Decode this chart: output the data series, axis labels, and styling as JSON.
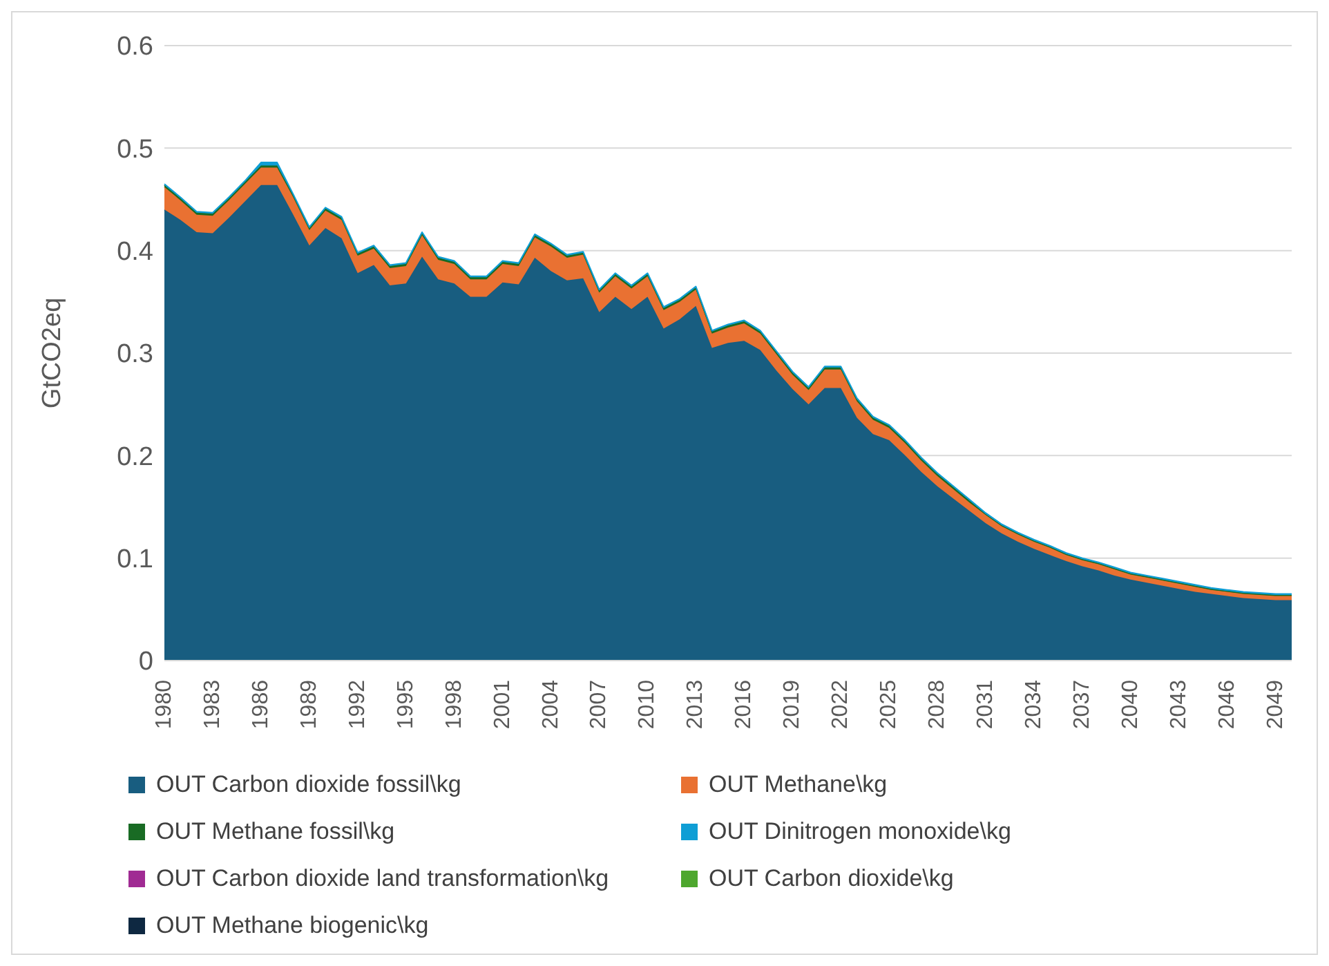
{
  "chart_data": {
    "type": "area",
    "stacked": true,
    "ylabel": "GtCO2eq",
    "categories": [
      "1980",
      null,
      null,
      "1983",
      null,
      null,
      "1986",
      null,
      null,
      "1989",
      null,
      null,
      "1992",
      null,
      null,
      "1995",
      null,
      null,
      "1998",
      null,
      null,
      "2001",
      null,
      null,
      "2004",
      null,
      null,
      "2007",
      null,
      null,
      "2010",
      null,
      null,
      "2013",
      null,
      null,
      "2016",
      null,
      null,
      "2019",
      null,
      null,
      "2022",
      null,
      null,
      "2025",
      null,
      null,
      "2028",
      null,
      null,
      "2031",
      null,
      null,
      "2034",
      null,
      null,
      "2037",
      null,
      null,
      "2040",
      null,
      null,
      "2043",
      null,
      null,
      "2046",
      null,
      null,
      "2049",
      null
    ],
    "ylim": [
      0,
      0.6
    ],
    "yticks": [
      0,
      0.1,
      0.2,
      0.3,
      0.4,
      0.5,
      0.6
    ],
    "grid": "y",
    "legend": "bottom",
    "series": [
      {
        "name": "OUT Carbon dioxide fossil\\kg",
        "color": "#185d80",
        "values": [
          0.44,
          0.43,
          0.418,
          0.417,
          0.432,
          0.448,
          0.464,
          0.464,
          0.435,
          0.405,
          0.422,
          0.412,
          0.378,
          0.386,
          0.366,
          0.368,
          0.394,
          0.372,
          0.368,
          0.355,
          0.355,
          0.369,
          0.367,
          0.393,
          0.38,
          0.371,
          0.373,
          0.34,
          0.355,
          0.343,
          0.355,
          0.324,
          0.333,
          0.346,
          0.305,
          0.31,
          0.312,
          0.303,
          0.283,
          0.265,
          0.25,
          0.266,
          0.266,
          0.237,
          0.221,
          0.215,
          0.2,
          0.184,
          0.17,
          0.158,
          0.146,
          0.134,
          0.124,
          0.116,
          0.109,
          0.103,
          0.097,
          0.092,
          0.088,
          0.083,
          0.079,
          0.076,
          0.073,
          0.07,
          0.067,
          0.065,
          0.063,
          0.061,
          0.06,
          0.059,
          0.059
        ]
      },
      {
        "name": "OUT Methane\\kg",
        "color": "#e97132",
        "values": [
          0.022,
          0.019,
          0.017,
          0.017,
          0.017,
          0.017,
          0.017,
          0.017,
          0.017,
          0.015,
          0.017,
          0.018,
          0.017,
          0.016,
          0.017,
          0.017,
          0.021,
          0.019,
          0.019,
          0.017,
          0.017,
          0.018,
          0.018,
          0.02,
          0.024,
          0.022,
          0.023,
          0.019,
          0.02,
          0.02,
          0.02,
          0.018,
          0.017,
          0.016,
          0.014,
          0.015,
          0.017,
          0.016,
          0.016,
          0.014,
          0.014,
          0.018,
          0.018,
          0.016,
          0.014,
          0.012,
          0.012,
          0.011,
          0.01,
          0.009,
          0.008,
          0.008,
          0.007,
          0.007,
          0.007,
          0.007,
          0.006,
          0.006,
          0.006,
          0.006,
          0.005,
          0.005,
          0.005,
          0.005,
          0.005,
          0.004,
          0.004,
          0.004,
          0.004,
          0.004,
          0.004
        ]
      },
      {
        "name": "OUT Methane fossil\\kg",
        "color": "#196b24",
        "values": [
          0.002,
          0.002,
          0.002,
          0.002,
          0.002,
          0.002,
          0.002,
          0.002,
          0.002,
          0.002,
          0.002,
          0.002,
          0.002,
          0.002,
          0.002,
          0.002,
          0.002,
          0.002,
          0.002,
          0.002,
          0.002,
          0.002,
          0.002,
          0.002,
          0.002,
          0.002,
          0.002,
          0.002,
          0.002,
          0.002,
          0.002,
          0.002,
          0.002,
          0.002,
          0.002,
          0.002,
          0.002,
          0.002,
          0.002,
          0.002,
          0.002,
          0.002,
          0.002,
          0.002,
          0.002,
          0.002,
          0.002,
          0.002,
          0.002,
          0.002,
          0.002,
          0.001,
          0.001,
          0.001,
          0.001,
          0.001,
          0.001,
          0.001,
          0.001,
          0.001,
          0.001,
          0.001,
          0.001,
          0.001,
          0.001,
          0.001,
          0.001,
          0.001,
          0.001,
          0.001,
          0.001
        ]
      },
      {
        "name": "OUT Dinitrogen monoxide\\kg",
        "color": "#0f9ed5",
        "values": [
          0.001,
          0.001,
          0.001,
          0.001,
          0.001,
          0.001,
          0.003,
          0.003,
          0.001,
          0.001,
          0.001,
          0.001,
          0.001,
          0.001,
          0.001,
          0.001,
          0.001,
          0.001,
          0.001,
          0.001,
          0.001,
          0.001,
          0.001,
          0.001,
          0.001,
          0.001,
          0.001,
          0.001,
          0.001,
          0.001,
          0.001,
          0.001,
          0.001,
          0.001,
          0.001,
          0.001,
          0.001,
          0.001,
          0.001,
          0.001,
          0.001,
          0.001,
          0.001,
          0.001,
          0.001,
          0.001,
          0.001,
          0.001,
          0.001,
          0.001,
          0.001,
          0.001,
          0.001,
          0.001,
          0.001,
          0.001,
          0.001,
          0.001,
          0.001,
          0.001,
          0.001,
          0.001,
          0.001,
          0.001,
          0.001,
          0.001,
          0.001,
          0.001,
          0.001,
          0.001,
          0.001
        ]
      },
      {
        "name": "OUT Carbon dioxide land transformation\\kg",
        "color": "#a02b93",
        "values": [
          null,
          null,
          null,
          null,
          null,
          null,
          null,
          null,
          null,
          null,
          null,
          null,
          null,
          null,
          null,
          null,
          null,
          null,
          null,
          null,
          null,
          null,
          null,
          null,
          null,
          null,
          null,
          null,
          null,
          null,
          null,
          null,
          null,
          null,
          null,
          null,
          null,
          null,
          null,
          null,
          null,
          null,
          null,
          null,
          null,
          null,
          null,
          null,
          null,
          null,
          null,
          null,
          null,
          null,
          null,
          null,
          null,
          null,
          null,
          null,
          null,
          null,
          null,
          null,
          null,
          null,
          null,
          null,
          null,
          null,
          null
        ]
      },
      {
        "name": "OUT Carbon dioxide\\kg",
        "color": "#4ea72e",
        "values": [
          null,
          null,
          null,
          null,
          null,
          null,
          null,
          null,
          null,
          null,
          null,
          null,
          null,
          null,
          null,
          null,
          null,
          null,
          null,
          null,
          null,
          null,
          null,
          null,
          null,
          null,
          null,
          null,
          null,
          null,
          null,
          null,
          null,
          null,
          null,
          null,
          null,
          null,
          null,
          null,
          null,
          null,
          null,
          null,
          null,
          null,
          null,
          null,
          null,
          null,
          null,
          null,
          null,
          null,
          null,
          null,
          null,
          null,
          null,
          null,
          null,
          null,
          null,
          null,
          null,
          null,
          null,
          null,
          null,
          null,
          null
        ]
      },
      {
        "name": "OUT Methane biogenic\\kg",
        "color": "#0e2841",
        "values": [
          null,
          null,
          null,
          null,
          null,
          null,
          null,
          null,
          null,
          null,
          null,
          null,
          null,
          null,
          null,
          null,
          null,
          null,
          null,
          null,
          null,
          null,
          null,
          null,
          null,
          null,
          null,
          null,
          null,
          null,
          null,
          null,
          null,
          null,
          null,
          null,
          null,
          null,
          null,
          null,
          null,
          null,
          null,
          null,
          null,
          null,
          null,
          null,
          null,
          null,
          null,
          null,
          null,
          null,
          null,
          null,
          null,
          null,
          null,
          null,
          null,
          null,
          null,
          null,
          null,
          null,
          null,
          null,
          null,
          null,
          null
        ]
      }
    ]
  }
}
